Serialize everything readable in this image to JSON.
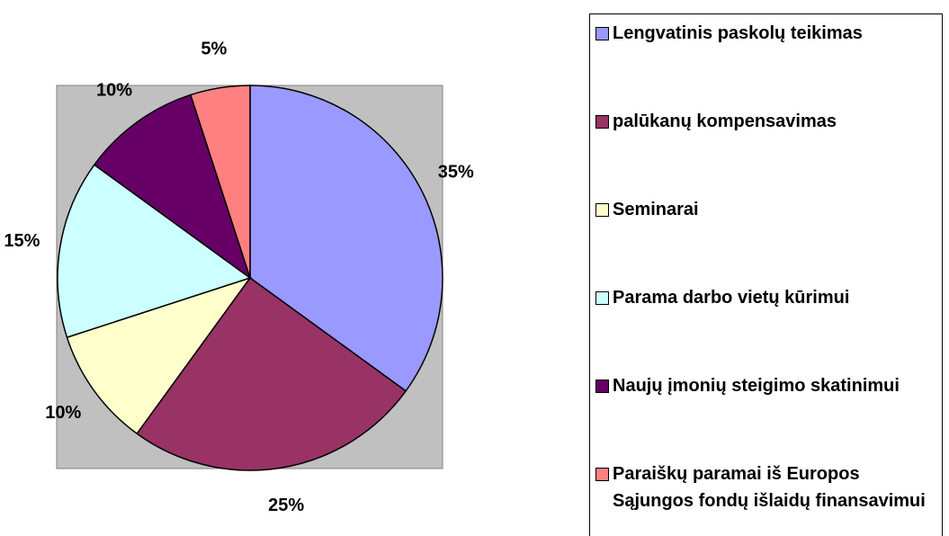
{
  "chart_data": {
    "type": "pie",
    "categories": [
      "Lengvatinis paskolų teikimas",
      "palūkanų kompensavimas",
      "Seminarai",
      "Parama darbo vietų kūrimui",
      "Naujų įmonių steigimo skatinimui",
      "Paraiškų paramai iš Europos Sąjungos fondų išlaidų finansavimui"
    ],
    "values": [
      35,
      25,
      10,
      15,
      10,
      5
    ],
    "value_labels": [
      "35%",
      "25%",
      "10%",
      "15%",
      "10%",
      "5%"
    ],
    "colors": [
      "#9999ff",
      "#993366",
      "#ffffcc",
      "#ccffff",
      "#660066",
      "#ff8080"
    ],
    "legend": "right"
  }
}
